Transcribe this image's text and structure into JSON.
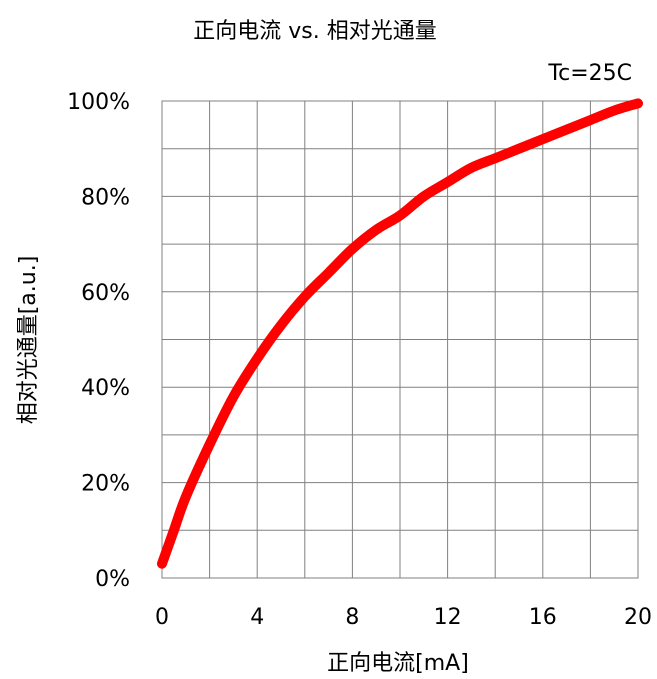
{
  "chart_data": {
    "type": "line",
    "title": "正向电流 vs. 相对光通量",
    "condition": "Tc=25C",
    "xlabel": "正向电流[mA]",
    "ylabel": "相对光通量[a.u.]",
    "xlim": [
      0,
      20
    ],
    "ylim": [
      0,
      100
    ],
    "x_ticks": [
      0,
      4,
      8,
      12,
      16,
      20
    ],
    "x_tick_labels": [
      "0",
      "4",
      "8",
      "12",
      "16",
      "20"
    ],
    "y_ticks": [
      0,
      20,
      40,
      60,
      80,
      100
    ],
    "y_tick_labels": [
      "0%",
      "20%",
      "40%",
      "60%",
      "80%",
      "100%"
    ],
    "x_grid_step": 2,
    "y_grid_step": 10,
    "grid": true,
    "series": [
      {
        "color": "#ff0000",
        "x": [
          0,
          0.5,
          1,
          2,
          3,
          4,
          5,
          6,
          7,
          8,
          9,
          10,
          11,
          12,
          13,
          14,
          15,
          16,
          17,
          18,
          19,
          20
        ],
        "y": [
          3,
          10,
          17,
          28,
          38,
          46,
          53,
          59,
          64,
          69,
          73,
          76,
          80,
          83,
          86,
          88,
          90,
          92,
          94,
          96,
          98,
          99.5
        ]
      }
    ]
  }
}
